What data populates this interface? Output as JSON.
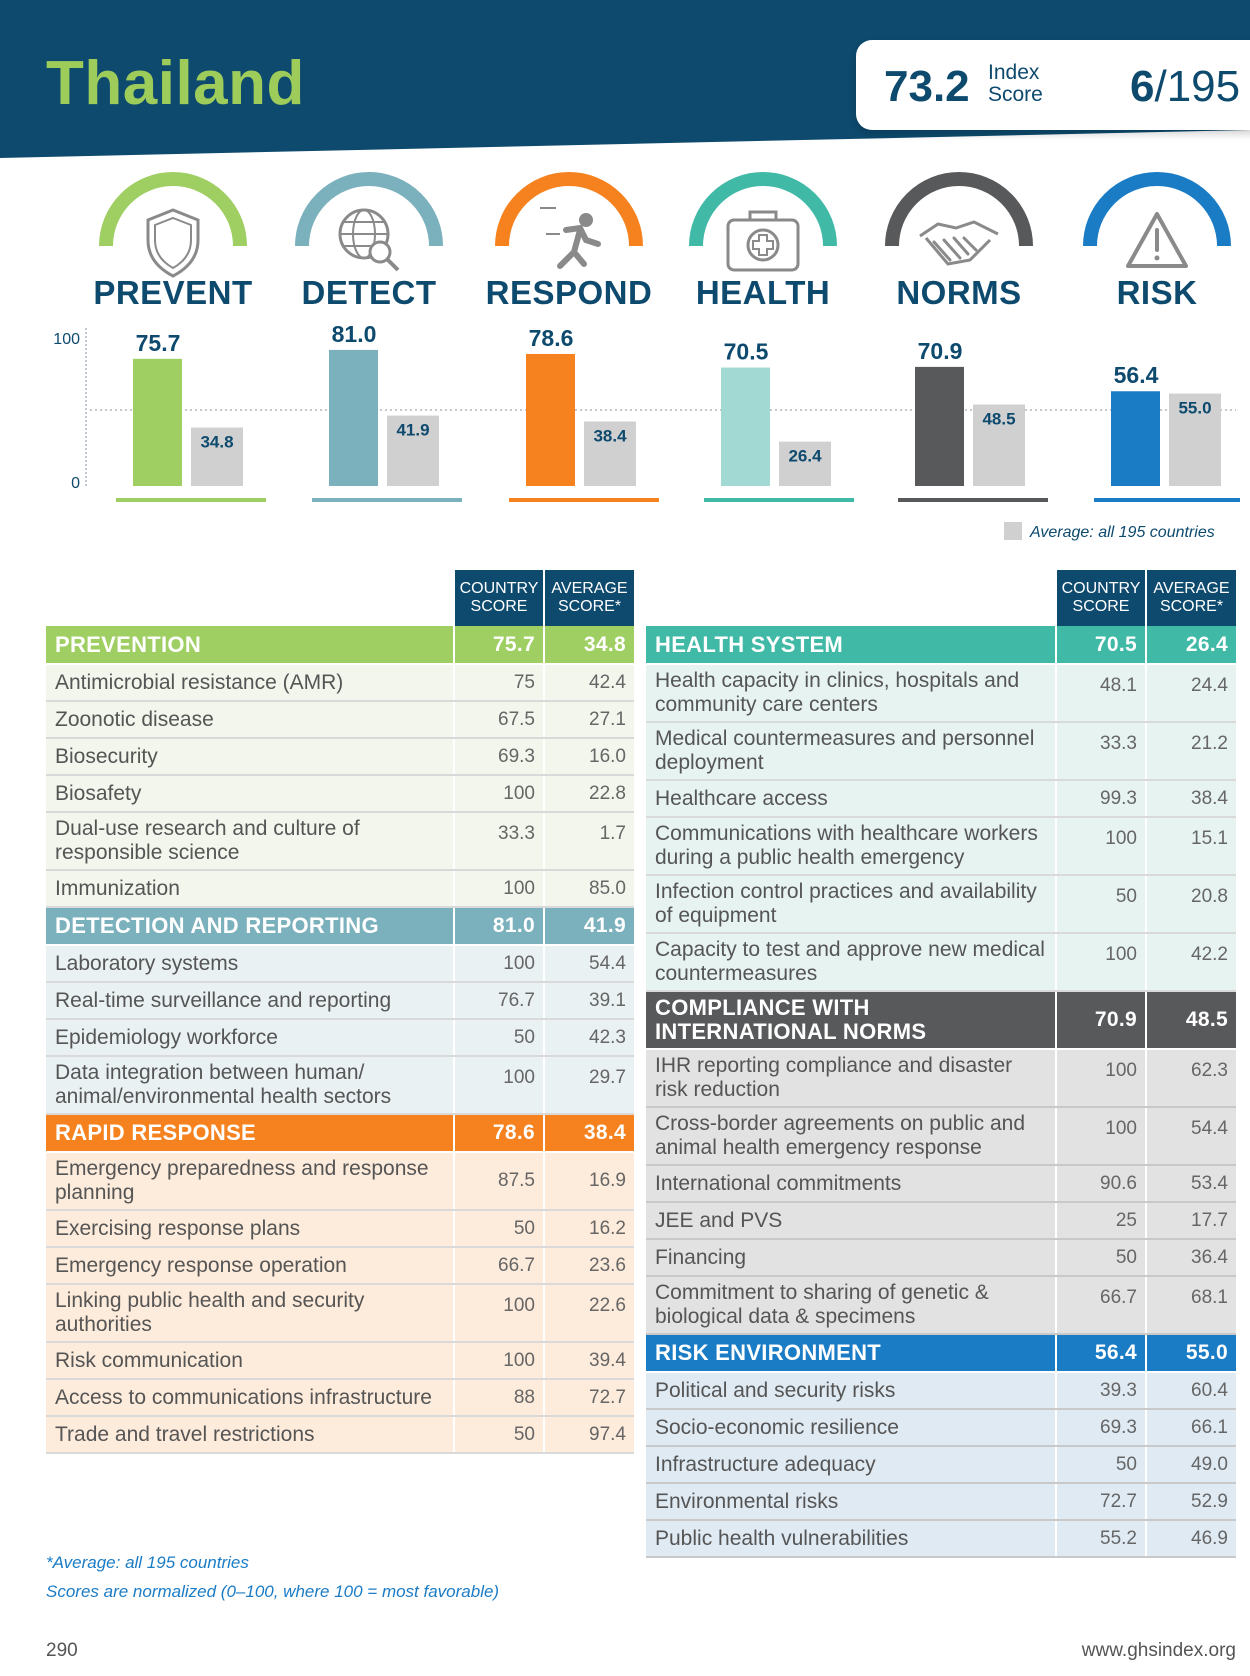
{
  "header": {
    "country": "Thailand",
    "index_score": "73.2",
    "index_label_line1": "Index",
    "index_label_line2": "Score",
    "rank": "6",
    "rank_total": "/195"
  },
  "categories": [
    {
      "label": "PREVENT",
      "icon": "shield-icon",
      "color": "#9fce63"
    },
    {
      "label": "DETECT",
      "icon": "globe-magnifier-icon",
      "color": "#7bb0bd"
    },
    {
      "label": "RESPOND",
      "icon": "running-person-icon",
      "color": "#f5821f"
    },
    {
      "label": "HEALTH",
      "icon": "medical-kit-icon",
      "color": "#40b9a6"
    },
    {
      "label": "NORMS",
      "icon": "handshake-icon",
      "color": "#58595b"
    },
    {
      "label": "RISK",
      "icon": "warning-triangle-icon",
      "color": "#1b7cc6"
    }
  ],
  "chart_data": {
    "type": "bar",
    "categories": [
      "PREVENT",
      "DETECT",
      "RESPOND",
      "HEALTH",
      "NORMS",
      "RISK"
    ],
    "series": [
      {
        "name": "",
        "values": [
          75.7,
          81.0,
          78.6,
          70.5,
          70.9,
          56.4
        ],
        "colors": [
          "#9fce63",
          "#7bb0bd",
          "#f5821f",
          "#a3d9d3",
          "#58595b",
          "#1b7cc6"
        ]
      },
      {
        "name": "Average: all 195 countries",
        "values": [
          34.8,
          41.9,
          38.4,
          26.4,
          48.5,
          55.0
        ],
        "color": "#d0d0d0"
      }
    ],
    "ylim": [
      0,
      100
    ],
    "yticks": [
      "100",
      "0"
    ],
    "legend": "bottom-right"
  },
  "legend_label": "Average: all 195 countries",
  "table_headers": {
    "country_line1": "COUNTRY",
    "country_line2": "SCORE",
    "average_line1": "AVERAGE",
    "average_line2": "SCORE*"
  },
  "left_table": [
    {
      "title": "PREVENTION",
      "score": "75.7",
      "avg": "34.8",
      "style": "green",
      "rows": [
        {
          "name": "Antimicrobial resistance (AMR)",
          "score": "75",
          "avg": "42.4"
        },
        {
          "name": "Zoonotic disease",
          "score": "67.5",
          "avg": "27.1"
        },
        {
          "name": "Biosecurity",
          "score": "69.3",
          "avg": "16.0"
        },
        {
          "name": "Biosafety",
          "score": "100",
          "avg": "22.8"
        },
        {
          "name": "Dual-use research and culture of responsible science",
          "score": "33.3",
          "avg": "1.7",
          "two_line": true
        },
        {
          "name": "Immunization",
          "score": "100",
          "avg": "85.0"
        }
      ]
    },
    {
      "title": "DETECTION AND REPORTING",
      "score": "81.0",
      "avg": "41.9",
      "style": "blue",
      "rows": [
        {
          "name": "Laboratory systems",
          "score": "100",
          "avg": "54.4"
        },
        {
          "name": "Real-time surveillance and reporting",
          "score": "76.7",
          "avg": "39.1"
        },
        {
          "name": "Epidemiology workforce",
          "score": "50",
          "avg": "42.3"
        },
        {
          "name": "Data integration between human/ animal/environmental health sectors",
          "score": "100",
          "avg": "29.7",
          "two_line": true
        }
      ]
    },
    {
      "title": "RAPID RESPONSE",
      "score": "78.6",
      "avg": "38.4",
      "style": "orange",
      "rows": [
        {
          "name": "Emergency preparedness and response planning",
          "score": "87.5",
          "avg": "16.9",
          "two_line": true,
          "middle": true
        },
        {
          "name": "Exercising response plans",
          "score": "50",
          "avg": "16.2"
        },
        {
          "name": "Emergency response operation",
          "score": "66.7",
          "avg": "23.6"
        },
        {
          "name": "Linking public health and security authorities",
          "score": "100",
          "avg": "22.6",
          "two_line": true
        },
        {
          "name": "Risk communication",
          "score": "100",
          "avg": "39.4"
        },
        {
          "name": "Access to communications infrastructure",
          "score": "88",
          "avg": "72.7"
        },
        {
          "name": "Trade and travel restrictions",
          "score": "50",
          "avg": "97.4"
        }
      ]
    }
  ],
  "right_table": [
    {
      "title": "HEALTH SYSTEM",
      "score": "70.5",
      "avg": "26.4",
      "style": "teal",
      "rows": [
        {
          "name": "Health capacity in clinics, hospitals and community care centers",
          "score": "48.1",
          "avg": "24.4",
          "two_line": true
        },
        {
          "name": "Medical countermeasures and personnel deployment",
          "score": "33.3",
          "avg": "21.2",
          "two_line": true
        },
        {
          "name": "Healthcare access",
          "score": "99.3",
          "avg": "38.4"
        },
        {
          "name": "Communications with healthcare workers during a public health emergency",
          "score": "100",
          "avg": "15.1",
          "two_line": true
        },
        {
          "name": "Infection control practices and availability of equipment",
          "score": "50",
          "avg": "20.8",
          "two_line": true
        },
        {
          "name": "Capacity to test and approve new medical countermeasures",
          "score": "100",
          "avg": "42.2",
          "two_line": true
        }
      ]
    },
    {
      "title": "COMPLIANCE WITH INTERNATIONAL NORMS",
      "score": "70.9",
      "avg": "48.5",
      "style": "dark",
      "two_line": true,
      "rows": [
        {
          "name": "IHR reporting compliance and disaster risk reduction",
          "score": "100",
          "avg": "62.3",
          "two_line": true
        },
        {
          "name": "Cross-border agreements on public and animal health emergency response",
          "score": "100",
          "avg": "54.4",
          "two_line": true
        },
        {
          "name": "International commitments",
          "score": "90.6",
          "avg": "53.4"
        },
        {
          "name": "JEE and PVS",
          "score": "25",
          "avg": "17.7"
        },
        {
          "name": "Financing",
          "score": "50",
          "avg": "36.4"
        },
        {
          "name": "Commitment to sharing of genetic & biological data & specimens",
          "score": "66.7",
          "avg": "68.1",
          "two_line": true
        }
      ]
    },
    {
      "title": "RISK ENVIRONMENT",
      "score": "56.4",
      "avg": "55.0",
      "style": "risk",
      "rows": [
        {
          "name": "Political and security risks",
          "score": "39.3",
          "avg": "60.4"
        },
        {
          "name": "Socio-economic resilience",
          "score": "69.3",
          "avg": "66.1"
        },
        {
          "name": "Infrastructure adequacy",
          "score": "50",
          "avg": "49.0"
        },
        {
          "name": "Environmental risks",
          "score": "72.7",
          "avg": "52.9"
        },
        {
          "name": "Public health vulnerabilities",
          "score": "55.2",
          "avg": "46.9"
        }
      ]
    }
  ],
  "notes": {
    "line1": "*Average: all 195 countries",
    "line2": "Scores are normalized (0–100, where 100 = most favorable)"
  },
  "footer": {
    "page_number": "290",
    "website": "www.ghsindex.org"
  }
}
